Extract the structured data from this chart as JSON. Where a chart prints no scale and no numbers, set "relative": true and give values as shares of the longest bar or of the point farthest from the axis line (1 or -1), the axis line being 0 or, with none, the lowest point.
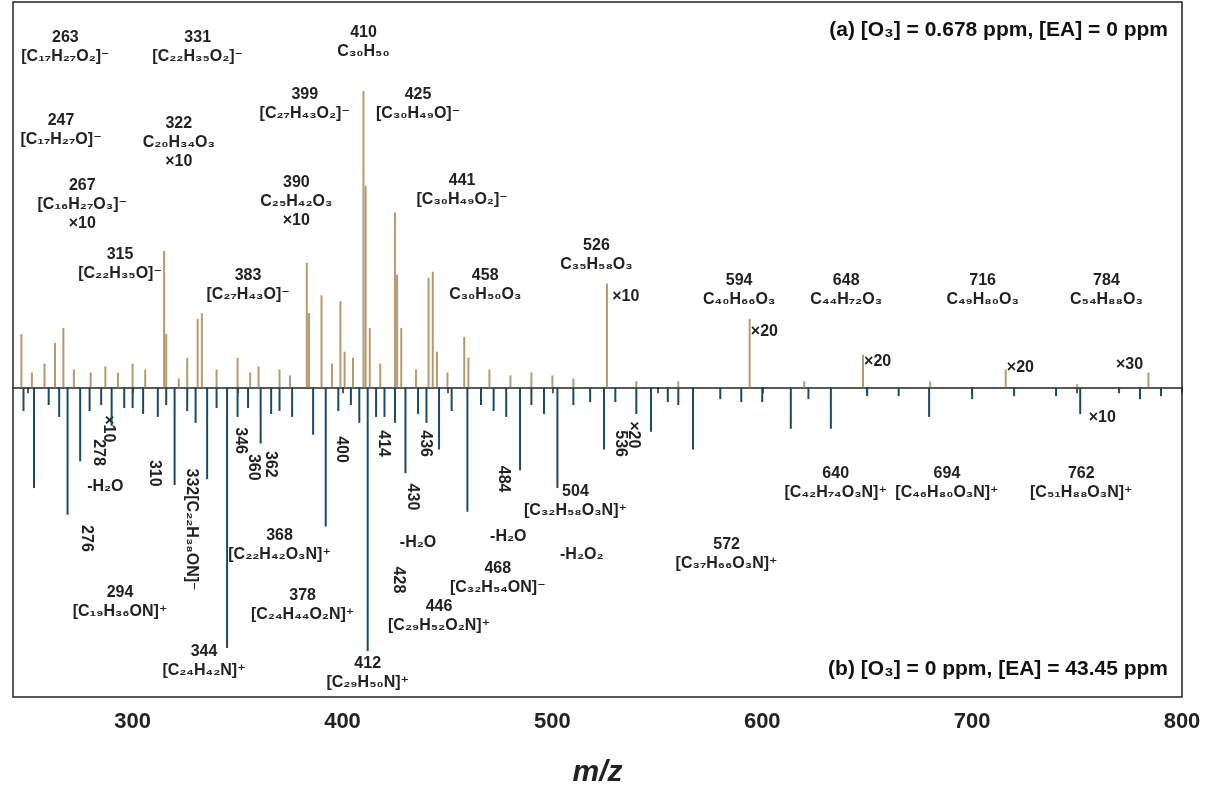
{
  "chart_data": {
    "type": "bar",
    "relative": true,
    "xlabel": "m/z",
    "grid": false,
    "tick_labels": "x",
    "xlim": [
      243,
      800
    ],
    "xticks": [
      {
        "value": 250,
        "label": null
      },
      300,
      {
        "value": 350,
        "label": null
      },
      400,
      {
        "value": 450,
        "label": null
      },
      500,
      {
        "value": 550,
        "label": null
      },
      600,
      {
        "value": 650,
        "label": null
      },
      700,
      {
        "value": 750,
        "label": null
      },
      800
    ],
    "series": [
      {
        "color": "#b59a6e",
        "x": [
          247,
          252,
          258,
          263,
          267,
          272,
          280,
          287,
          293,
          300,
          306,
          315,
          316,
          322,
          326,
          331,
          333,
          340,
          350,
          356,
          360,
          370,
          375,
          383,
          384,
          390,
          395,
          399,
          401,
          405,
          410,
          411,
          413,
          418,
          425,
          426,
          428,
          435,
          441,
          443,
          445,
          450,
          458,
          460,
          470,
          480,
          490,
          500,
          510,
          526,
          540,
          560,
          594,
          620,
          648,
          680,
          716,
          750,
          784
        ],
        "values": [
          0.18,
          0.05,
          0.08,
          0.15,
          0.2,
          0.06,
          0.05,
          0.07,
          0.05,
          0.08,
          0.06,
          0.46,
          0.18,
          0.03,
          0.1,
          0.23,
          0.25,
          0.06,
          0.1,
          0.05,
          0.07,
          0.06,
          0.04,
          0.42,
          0.25,
          0.31,
          0.08,
          0.29,
          0.12,
          0.1,
          1,
          0.68,
          0.2,
          0.08,
          0.59,
          0.38,
          0.2,
          0.06,
          0.37,
          0.39,
          0.12,
          0.05,
          0.17,
          0.1,
          0.06,
          0.04,
          0.05,
          0.04,
          0.03,
          0.35,
          0.02,
          0.02,
          0.23,
          0.02,
          0.11,
          0.02,
          0.06,
          0.01,
          0.05
        ]
      },
      {
        "color": "#1b4a63",
        "x": [
          248,
          253,
          260,
          265,
          269,
          275,
          279.5,
          285,
          290,
          296,
          300,
          305,
          312,
          316,
          320,
          326,
          330,
          335.5,
          340,
          345,
          350,
          355,
          361,
          366,
          370,
          376,
          386,
          392,
          398,
          404,
          408,
          412,
          416,
          420,
          425,
          430,
          436,
          440,
          446,
          452,
          459.5,
          466,
          472,
          478,
          484.6,
          490,
          496,
          502.4,
          510,
          518,
          524.6,
          530,
          540,
          547,
          555,
          560,
          567,
          580,
          590,
          600,
          613.6,
          622,
          632.7,
          650,
          665,
          679.5,
          700,
          720,
          740,
          751.5,
          770,
          780,
          790
        ],
        "values": [
          -0.08,
          -0.34,
          -0.06,
          -0.1,
          -0.43,
          -0.25,
          -0.08,
          -0.06,
          -0.13,
          -0.07,
          -0.07,
          -0.09,
          -0.1,
          -0.06,
          -0.33,
          -0.08,
          -0.12,
          -0.31,
          -0.07,
          -0.88,
          -0.1,
          -0.07,
          -0.19,
          -0.09,
          -0.08,
          -0.1,
          -0.16,
          -0.47,
          -0.08,
          -0.06,
          -0.12,
          -0.89,
          -0.1,
          -0.1,
          -0.12,
          -0.29,
          -0.09,
          -0.12,
          -0.21,
          -0.08,
          -0.42,
          -0.06,
          -0.08,
          -0.1,
          -0.28,
          -0.06,
          -0.09,
          -0.34,
          -0.06,
          -0.05,
          -0.21,
          -0.05,
          -0.09,
          -0.15,
          -0.05,
          -0.06,
          -0.21,
          -0.04,
          -0.05,
          -0.05,
          -0.14,
          -0.04,
          -0.14,
          -0.03,
          -0.03,
          -0.1,
          -0.04,
          -0.03,
          -0.03,
          -0.09,
          -0.02,
          -0.04,
          -0.03
        ]
      }
    ],
    "annotations": [
      "263\n[C₁₇H₂₇O₂]⁻",
      "331\n[C₂₂H₃₅O₂]⁻",
      "410\nC₃₀H₅₀",
      "247\n[C₁₇H₂₇O]⁻",
      "322\nC₂₀H₃₄O₃\n×10",
      "267\n[C₁₆H₂₇O₃]⁻\n×10",
      "315\n[C₂₂H₃₅O]⁻",
      "383\n[C₂₇H₄₃O]⁻",
      "390\nC₂₅H₄₂O₃\n×10",
      "399\n[C₂₇H₄₃O₂]⁻",
      "425\n[C₃₀H₄₉O]⁻",
      "441\n[C₃₀H₄₉O₂]⁻",
      "458\nC₃₀H₅₀O₃",
      "526\nC₃₅H₅₈O₃",
      "×10",
      "594\nC₄₀H₆₆O₃",
      "×20",
      "648\nC₄₄H₇₂O₃",
      "×20",
      "716\nC₄₉H₈₀O₃",
      "×20",
      "784\nC₅₄H₈₈O₃",
      "×30",
      "(a) [O₃] = 0.678 ppm, [EA] = 0 ppm",
      "278",
      "×10",
      "-H₂O",
      "276",
      "294\n[C₁₉H₃₆ON]⁺",
      "310",
      "332[C₂₂H₃₈ON]⁻",
      "346",
      "360",
      "362",
      "368\n[C₂₂H₄₂O₃N]⁺",
      "344\n[C₂₄H₄₂N]⁺",
      "378\n[C₂₄H₄₄O₂N]⁺",
      "400",
      "414",
      "436",
      "430",
      "-H₂O",
      "428",
      "446\n[C₂₉H₅₂O₂N]⁺",
      "412\n[C₂₉H₅₀N]⁺",
      "484",
      "-H₂O",
      "504\n[C₃₂H₅₈O₃N]⁺",
      "-H₂O₂",
      "468\n[C₃₂H₅₄ON]⁻",
      "536",
      "×20",
      "572\n[C₃₇H₆₆O₃N]⁺",
      "640\n[C₄₂H₇₄O₃N]⁺",
      "694\n[C₄₆H₈₀O₃N]⁺",
      "762\n[C₅₁H₈₈O₃N]⁺",
      "×10",
      "(b) [O₃] = 0 ppm, [EA] = 43.45 ppm"
    ]
  }
}
